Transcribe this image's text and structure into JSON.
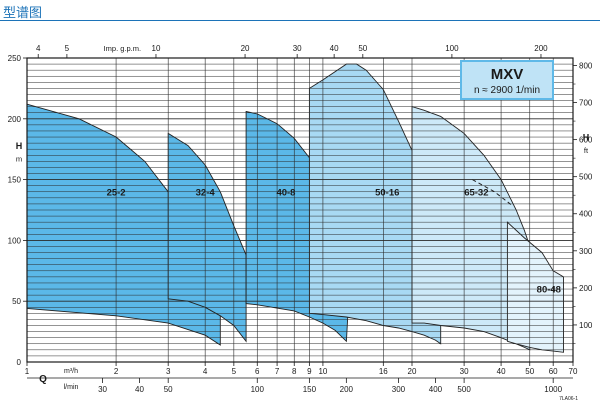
{
  "page": {
    "title": "型谱图"
  },
  "chart_data": {
    "type": "area",
    "model_box": {
      "name": "MXV",
      "speed": "n ≈ 2900 1/min",
      "accent": "#5fb9e8",
      "box_fill": "#bfe3f6"
    },
    "axes": {
      "x_q_m3h": {
        "label_q": "Q",
        "unit": "m³/h",
        "range": [
          1,
          70
        ],
        "scale": "log",
        "ticks": [
          1,
          2,
          3,
          4,
          5,
          6,
          7,
          8,
          9,
          10,
          16,
          20,
          30,
          40,
          50,
          60,
          70
        ]
      },
      "x_q_lmin": {
        "unit": "l/min",
        "scale": "log",
        "ticks": [
          30,
          40,
          50,
          100,
          150,
          200,
          300,
          400,
          500,
          1000
        ]
      },
      "x_top_impgpm": {
        "unit": "Imp. g.p.m.",
        "scale": "log",
        "ticks": [
          4,
          5,
          10,
          20,
          30,
          40,
          50,
          100,
          200
        ]
      },
      "y_left_m": {
        "label": "H",
        "unit": "m",
        "range": [
          0,
          250
        ],
        "ticks": [
          50,
          100,
          150,
          200,
          250
        ]
      },
      "y_right_ft": {
        "label": "H",
        "unit": "ft",
        "range": [
          0,
          820
        ],
        "ticks": [
          100,
          200,
          300,
          400,
          500,
          600,
          700,
          800
        ]
      }
    },
    "grid": true,
    "footnote": "7LA06-1",
    "series": [
      {
        "name": "25-2",
        "color": "#5bb8e8",
        "label_at": [
          2,
          140
        ],
        "top": [
          [
            1,
            212
          ],
          [
            1.5,
            200
          ],
          [
            2,
            185
          ],
          [
            2.5,
            165
          ],
          [
            3,
            140
          ],
          [
            3.5,
            118
          ],
          [
            4,
            100
          ],
          [
            4.3,
            85
          ],
          [
            4.5,
            80
          ]
        ],
        "bottom": [
          [
            1,
            44
          ],
          [
            2,
            38
          ],
          [
            3,
            32
          ],
          [
            4,
            22
          ],
          [
            4.5,
            14
          ]
        ]
      },
      {
        "name": "32-4",
        "color": "#5bb8e8",
        "label_at": [
          4,
          140
        ],
        "top": [
          [
            3,
            188
          ],
          [
            3.5,
            178
          ],
          [
            4,
            162
          ],
          [
            4.5,
            140
          ],
          [
            5,
            112
          ],
          [
            5.5,
            88
          ]
        ],
        "bottom": [
          [
            3,
            52
          ],
          [
            3.5,
            50
          ],
          [
            4,
            45
          ],
          [
            4.5,
            38
          ],
          [
            5,
            30
          ],
          [
            5.5,
            17
          ]
        ]
      },
      {
        "name": "40-8",
        "color": "#5bb8e8",
        "label_at": [
          7.5,
          140
        ],
        "top": [
          [
            5.5,
            206
          ],
          [
            6,
            204
          ],
          [
            7,
            196
          ],
          [
            8,
            184
          ],
          [
            9,
            168
          ],
          [
            10,
            145
          ],
          [
            11,
            124
          ],
          [
            12,
            104
          ],
          [
            12.5,
            95
          ]
        ],
        "bottom": [
          [
            5.5,
            48
          ],
          [
            6,
            47
          ],
          [
            8,
            42
          ],
          [
            9,
            37
          ],
          [
            10,
            32
          ],
          [
            11,
            26
          ],
          [
            12,
            17
          ]
        ]
      },
      {
        "name": "50-16",
        "color": "#a8d9f3",
        "label_at": [
          16.5,
          140
        ],
        "top": [
          [
            9,
            225
          ],
          [
            10,
            232
          ],
          [
            12,
            245
          ],
          [
            13,
            245
          ],
          [
            14,
            240
          ],
          [
            16,
            224
          ],
          [
            18,
            198
          ],
          [
            20,
            174
          ],
          [
            22,
            146
          ],
          [
            23,
            130
          ],
          [
            24,
            112
          ],
          [
            25,
            98
          ]
        ],
        "bottom": [
          [
            9,
            40
          ],
          [
            10,
            39
          ],
          [
            12,
            37
          ],
          [
            14,
            34
          ],
          [
            16,
            30
          ],
          [
            18,
            28
          ],
          [
            20,
            25
          ],
          [
            22,
            22
          ],
          [
            24,
            18
          ],
          [
            25,
            15
          ]
        ]
      },
      {
        "name": "65-32",
        "color": "#cde9f8",
        "label_at": [
          33,
          140
        ],
        "top": [
          [
            20,
            210
          ],
          [
            22,
            207
          ],
          [
            25,
            202
          ],
          [
            30,
            188
          ],
          [
            35,
            170
          ],
          [
            40,
            150
          ],
          [
            45,
            125
          ],
          [
            48,
            108
          ],
          [
            50,
            95
          ]
        ],
        "bottom": [
          [
            20,
            32
          ],
          [
            22,
            32
          ],
          [
            25,
            30
          ],
          [
            30,
            28
          ],
          [
            35,
            25
          ],
          [
            40,
            20
          ],
          [
            45,
            15
          ],
          [
            48,
            12
          ],
          [
            50,
            10
          ]
        ]
      },
      {
        "name": "80-48",
        "color": "#e3f3fc",
        "label_at": [
          58,
          60
        ],
        "top": [
          [
            42,
            115
          ],
          [
            48,
            102
          ],
          [
            55,
            90
          ],
          [
            60,
            75
          ],
          [
            65,
            70
          ]
        ],
        "bottom": [
          [
            42,
            17
          ],
          [
            45,
            15
          ],
          [
            50,
            12
          ],
          [
            55,
            10
          ],
          [
            60,
            9
          ],
          [
            65,
            8
          ]
        ]
      }
    ]
  }
}
